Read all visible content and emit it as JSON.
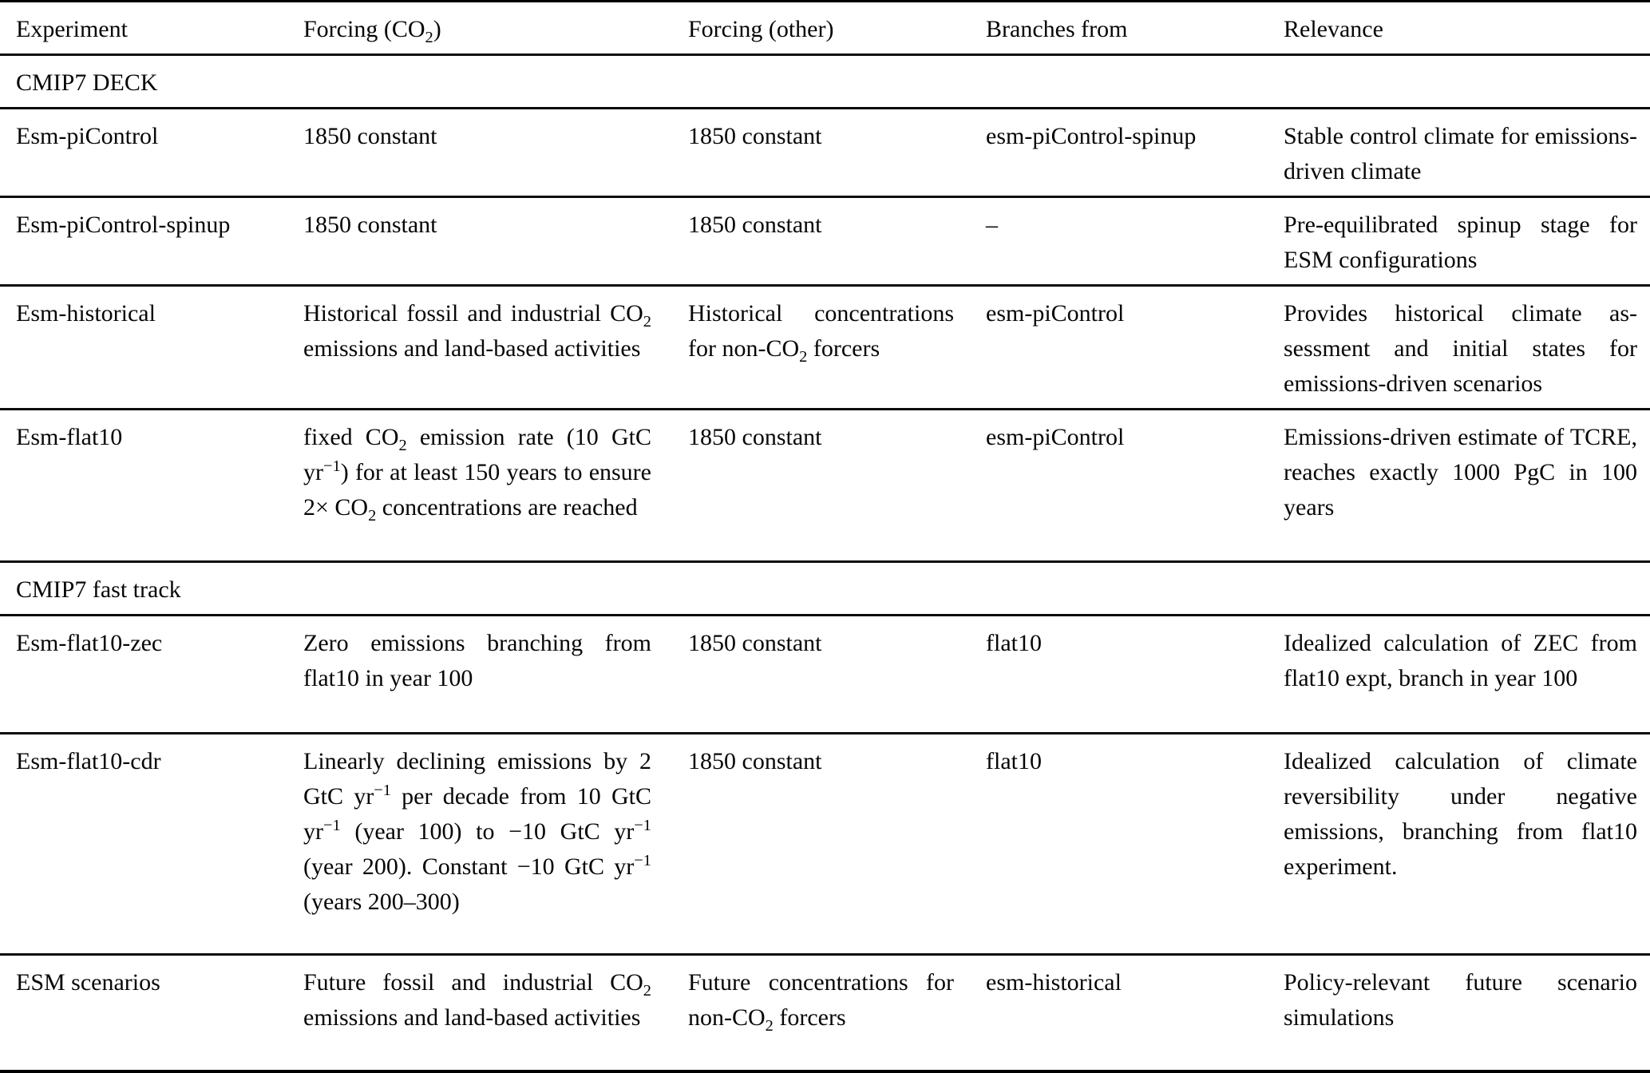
{
  "table": {
    "headers": [
      "Experiment",
      "Forcing (CO~2~)",
      "Forcing (other)",
      "Branches from",
      "Relevance"
    ],
    "rows": [
      {
        "type": "section",
        "label": "CMIP7 DECK"
      },
      {
        "type": "data",
        "experiment": "Esm-piControl",
        "forcing_co2": "1850 constant",
        "forcing_other": "1850 constant",
        "branches_from": "esm-piControl-spinup",
        "relevance": "Stable control climate for emissions-driven climate"
      },
      {
        "type": "data",
        "experiment": "Esm-piControl-spinup",
        "forcing_co2": "1850 constant",
        "forcing_other": "1850 constant",
        "branches_from": "–",
        "relevance": "Pre-equilibrated spinup stage for ESM configurations"
      },
      {
        "type": "data",
        "experiment": "Esm-historical",
        "forcing_co2": "Historical fossil and industrial CO~2~ emissions and land-based activities",
        "forcing_other": "Historical concentra­tions for non-CO~2~ forcers",
        "branches_from": "esm-piControl",
        "relevance": "Provides historical climate as­sessment and initial states for emissions-driven scenarios"
      },
      {
        "type": "data",
        "experiment": "Esm-flat10",
        "forcing_co2": "fixed CO~2~ emission rate (10 GtC yr^−1^) for at least 150 years to ensure 2× CO~2~ concentrations are reached",
        "forcing_other": "1850 constant",
        "branches_from": "esm-piControl",
        "relevance": "Emissions-driven estimate of TCRE, reaches exactly 1000 PgC in 100 years"
      },
      {
        "type": "section",
        "label": "CMIP7 fast track"
      },
      {
        "type": "data",
        "experiment": "Esm-flat10-zec",
        "forcing_co2": "Zero emissions branching from flat10 in year 100",
        "forcing_other": "1850 constant",
        "branches_from": "flat10",
        "relevance": "Idealized calculation of ZEC from flat10 expt, branch in year 100"
      },
      {
        "type": "data",
        "experiment": "Esm-flat10-cdr",
        "forcing_co2": "Linearly declining emissions by 2 GtC yr^−1^ per decade from 10 GtC yr^−1^ (year 100) to −10 GtC yr^−1^ (year 200). Constant −10 GtC yr^−1^ (years 200–300)",
        "forcing_other": "1850 constant",
        "branches_from": "flat10",
        "relevance": "Idealized calculation of cli­mate reversibility under nega­tive emissions, branching from flat10 experiment."
      },
      {
        "type": "data",
        "experiment": "ESM scenarios",
        "forcing_co2": "Future fossil and industrial CO~2~ emissions and land-based activ­ities",
        "forcing_other": "Future concentrations for non-CO~2~ forcers",
        "branches_from": "esm-historical",
        "relevance": "Policy-relevant future scenario simulations"
      }
    ]
  }
}
